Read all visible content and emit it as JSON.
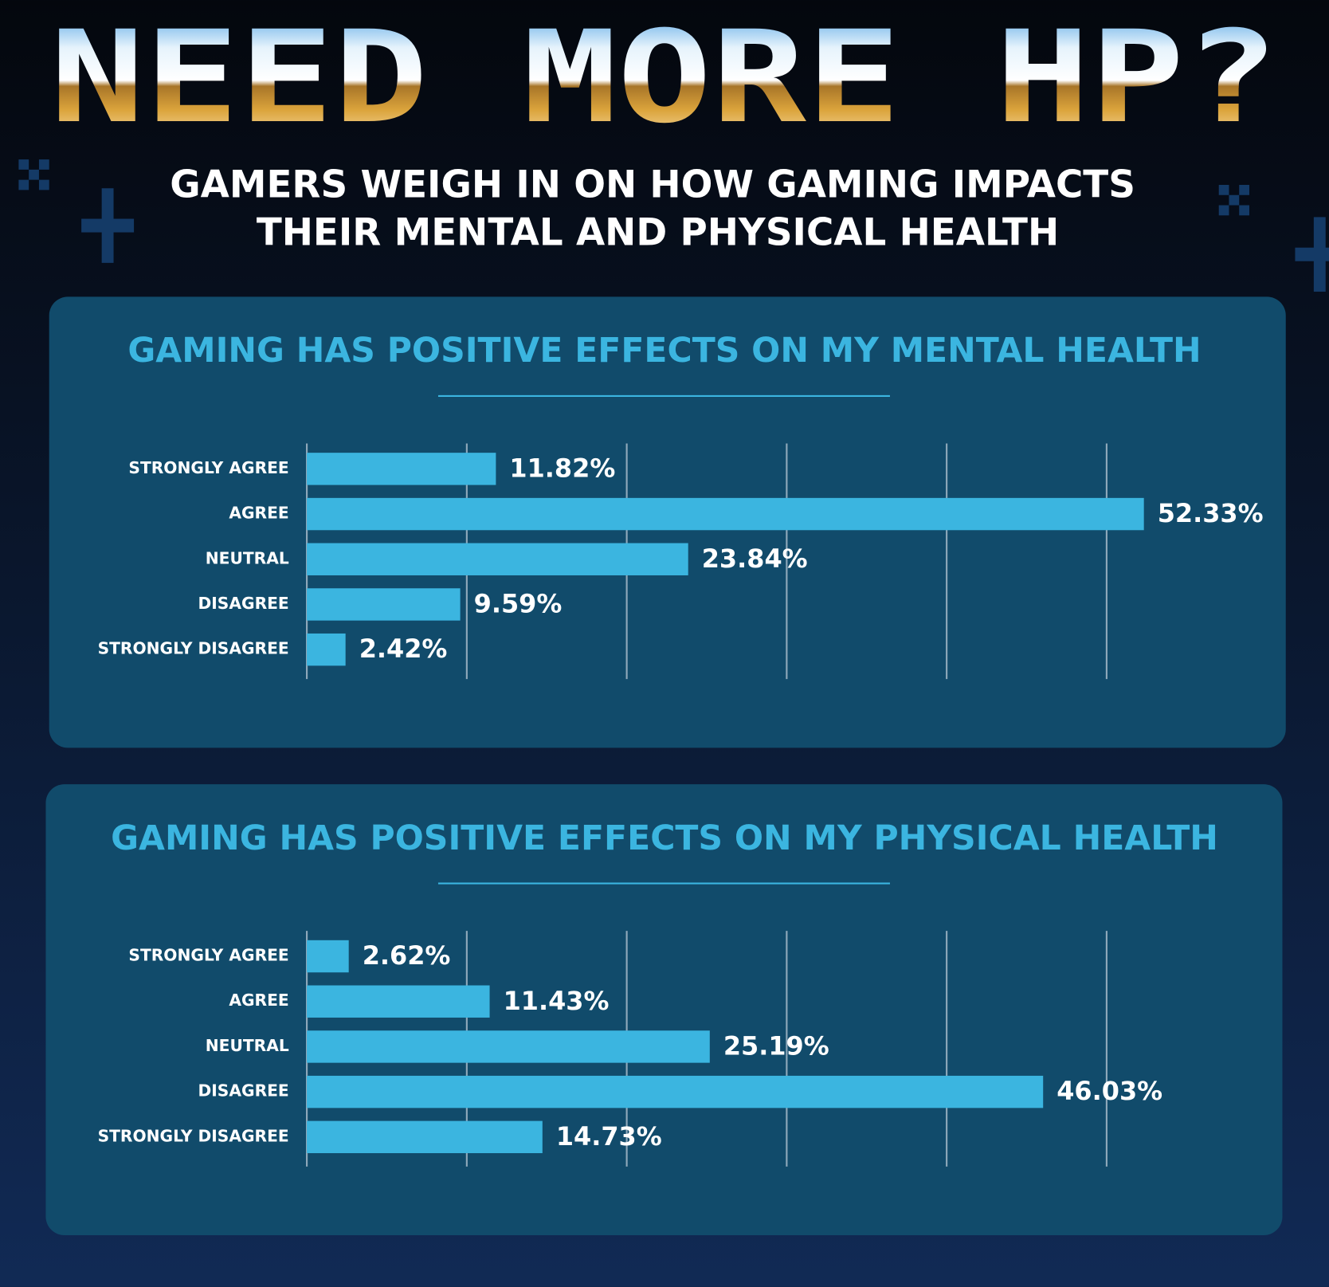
{
  "header": {
    "title": "NEED MORE HP?",
    "subtitle_lines": [
      "GAMERS WEIGH IN ON HOW GAMING IMPACTS",
      "THEIR MENTAL AND PHYSICAL HEALTH"
    ]
  },
  "chart_data": [
    {
      "type": "bar",
      "orientation": "horizontal",
      "title": "GAMING HAS POSITIVE EFFECTS ON MY MENTAL HEALTH",
      "categories": [
        "STRONGLY AGREE",
        "AGREE",
        "NEUTRAL",
        "DISAGREE",
        "STRONGLY DISAGREE"
      ],
      "values": [
        11.82,
        52.33,
        23.84,
        9.59,
        2.42
      ],
      "value_labels": [
        "11.82%",
        "52.33%",
        "23.84%",
        "9.59%",
        "2.42%"
      ],
      "color": "#3bb5e0",
      "xlim": [
        0,
        55
      ],
      "xticks": [
        0,
        10,
        20,
        30,
        40,
        50
      ],
      "grid": true
    },
    {
      "type": "bar",
      "orientation": "horizontal",
      "title": "GAMING HAS POSITIVE EFFECTS ON MY PHYSICAL HEALTH",
      "categories": [
        "STRONGLY AGREE",
        "AGREE",
        "NEUTRAL",
        "DISAGREE",
        "STRONGLY DISAGREE"
      ],
      "values": [
        2.62,
        11.43,
        25.19,
        46.03,
        14.73
      ],
      "value_labels": [
        "2.62%",
        "11.43%",
        "25.19%",
        "46.03%",
        "14.73%"
      ],
      "color": "#3bb5e0",
      "xlim": [
        0,
        55
      ],
      "xticks": [
        0,
        10,
        20,
        30,
        40,
        50
      ],
      "grid": true
    }
  ]
}
